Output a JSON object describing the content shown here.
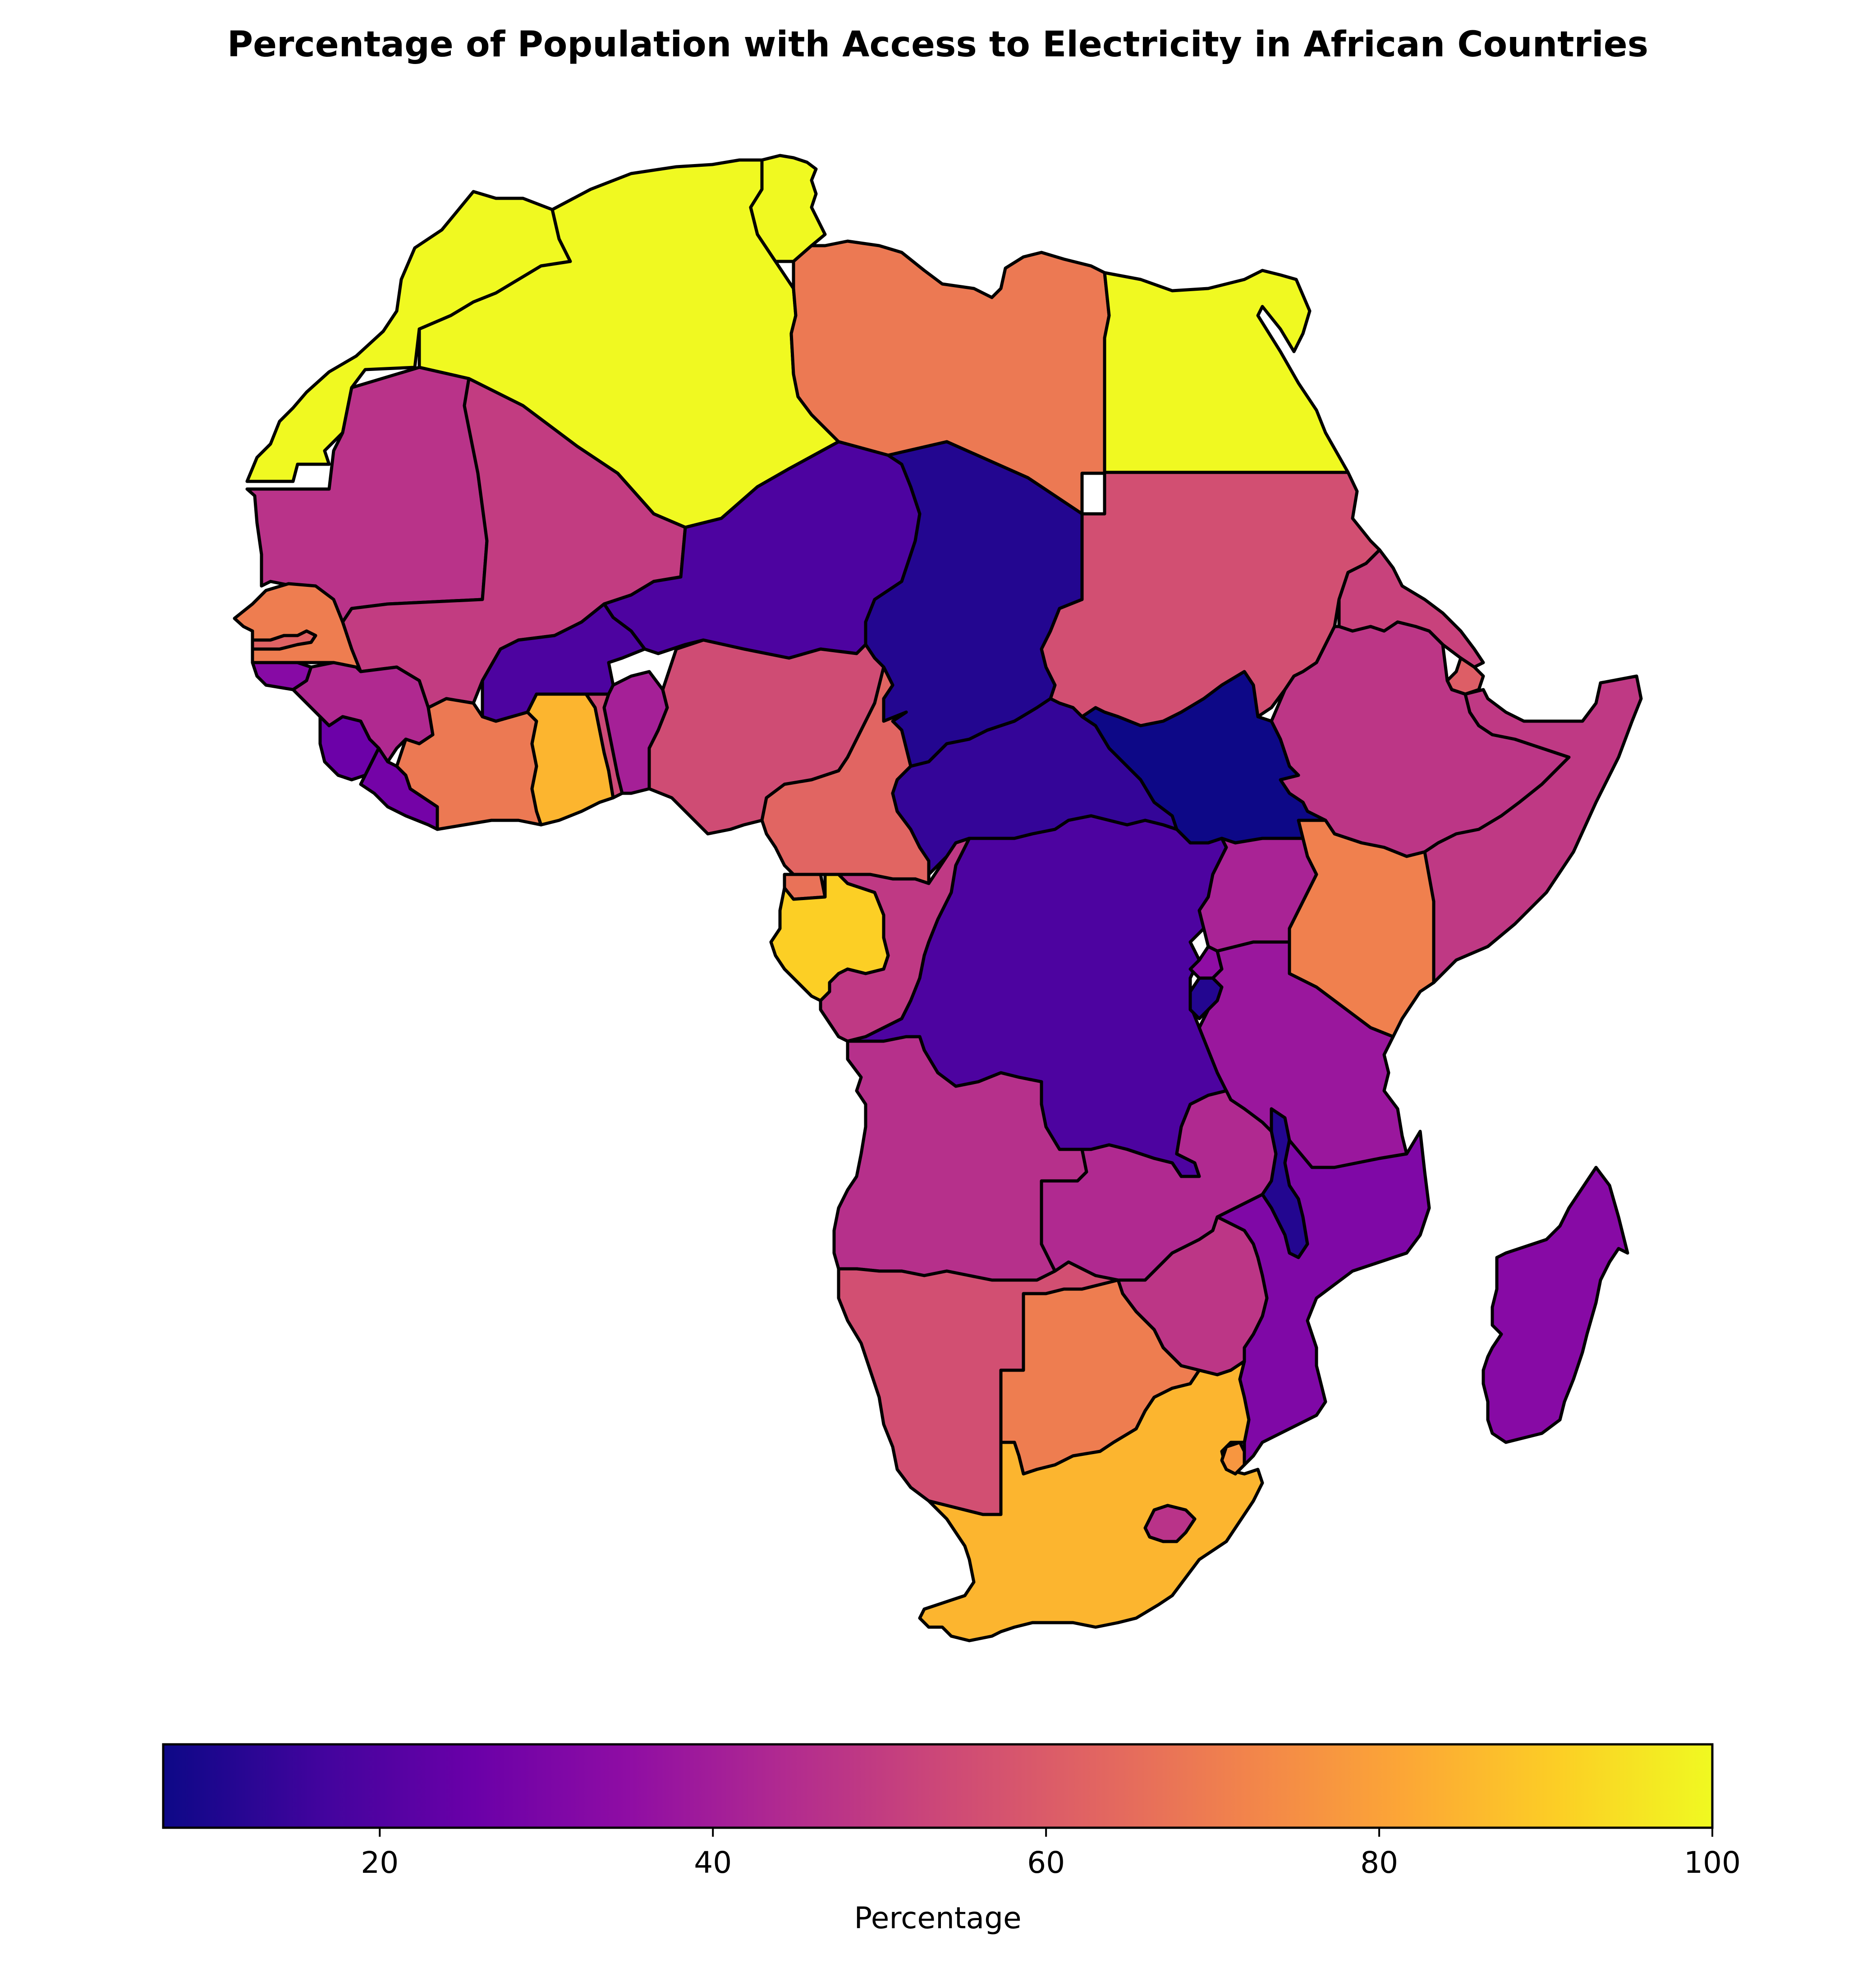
{
  "chart_data": {
    "type": "choropleth",
    "title": "Percentage of Population with Access to Electricity in African Countries",
    "colorbar": {
      "label": "Percentage",
      "colormap": "plasma",
      "range": [
        7,
        100
      ],
      "ticks": [
        "20",
        "40",
        "60",
        "80",
        "100"
      ],
      "orientation": "horizontal",
      "placement": "bottom"
    },
    "regions": [
      {
        "name": "Morocco",
        "value": 100
      },
      {
        "name": "Algeria",
        "value": 100
      },
      {
        "name": "Tunisia",
        "value": 100
      },
      {
        "name": "Libya",
        "value": 69
      },
      {
        "name": "Egypt",
        "value": 100
      },
      {
        "name": "Mauritania",
        "value": 47
      },
      {
        "name": "Mali",
        "value": 50
      },
      {
        "name": "Niger",
        "value": 19
      },
      {
        "name": "Chad",
        "value": 11
      },
      {
        "name": "Sudan",
        "value": 56
      },
      {
        "name": "Eritrea",
        "value": 52
      },
      {
        "name": "Djibouti",
        "value": 61
      },
      {
        "name": "Ethiopia",
        "value": 48
      },
      {
        "name": "Somalia",
        "value": 49
      },
      {
        "name": "Senegal",
        "value": 70
      },
      {
        "name": "Gambia",
        "value": 62
      },
      {
        "name": "Guinea-Bissau",
        "value": 33
      },
      {
        "name": "Guinea",
        "value": 44
      },
      {
        "name": "Sierra Leone",
        "value": 26
      },
      {
        "name": "Liberia",
        "value": 28
      },
      {
        "name": "Cote d'Ivoire",
        "value": 69
      },
      {
        "name": "Burkina Faso",
        "value": 19
      },
      {
        "name": "Ghana",
        "value": 85
      },
      {
        "name": "Togo",
        "value": 54
      },
      {
        "name": "Benin",
        "value": 41
      },
      {
        "name": "Nigeria",
        "value": 55
      },
      {
        "name": "Cameroon",
        "value": 63
      },
      {
        "name": "Central African Republic",
        "value": 14
      },
      {
        "name": "South Sudan",
        "value": 7
      },
      {
        "name": "Equatorial Guinea",
        "value": 67
      },
      {
        "name": "Gabon",
        "value": 91
      },
      {
        "name": "Republic of the Congo",
        "value": 49
      },
      {
        "name": "Democratic Republic of the Congo",
        "value": 19
      },
      {
        "name": "Uganda",
        "value": 42
      },
      {
        "name": "Kenya",
        "value": 71
      },
      {
        "name": "Rwanda",
        "value": 35
      },
      {
        "name": "Burundi",
        "value": 11
      },
      {
        "name": "Tanzania",
        "value": 38
      },
      {
        "name": "Angola",
        "value": 46
      },
      {
        "name": "Zambia",
        "value": 44
      },
      {
        "name": "Malawi",
        "value": 11
      },
      {
        "name": "Mozambique",
        "value": 31
      },
      {
        "name": "Zimbabwe",
        "value": 48
      },
      {
        "name": "Namibia",
        "value": 56
      },
      {
        "name": "Botswana",
        "value": 70
      },
      {
        "name": "South Africa",
        "value": 85
      },
      {
        "name": "Eswatini",
        "value": 77
      },
      {
        "name": "Lesotho",
        "value": 47
      },
      {
        "name": "Madagascar",
        "value": 33
      }
    ]
  }
}
